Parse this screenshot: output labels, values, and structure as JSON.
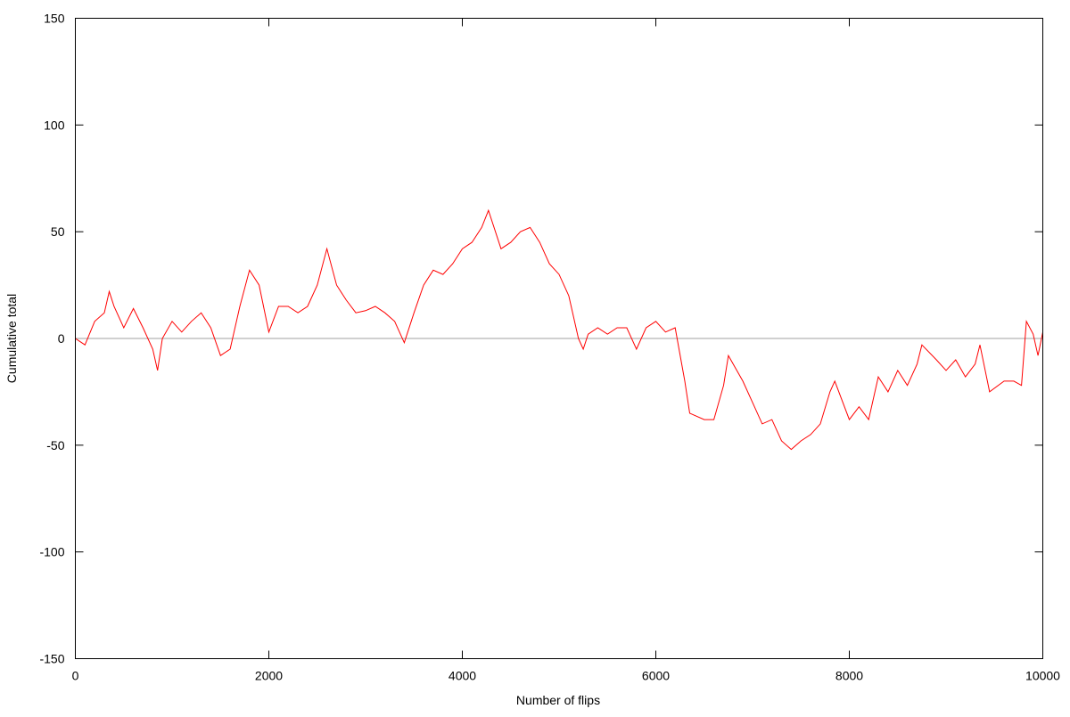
{
  "chart_data": {
    "type": "line",
    "title": "",
    "xlabel": "Number of flips",
    "ylabel": "Cumulative total",
    "xlim": [
      0,
      10000
    ],
    "ylim": [
      -150,
      150
    ],
    "xticks": [
      0,
      2000,
      4000,
      6000,
      8000,
      10000
    ],
    "yticks": [
      -150,
      -100,
      -50,
      0,
      50,
      100,
      150
    ],
    "xtick_labels": [
      "0",
      "2000",
      "4000",
      "6000",
      "8000",
      "10000"
    ],
    "ytick_labels": [
      "-150",
      "-100",
      "-50",
      "0",
      "50",
      "100",
      "150"
    ],
    "grid": false,
    "legend": "none",
    "zero_line": true,
    "colors": {
      "series": "#ff0000",
      "zero_line": "#a0a0a0",
      "axes": "#000000"
    },
    "series": [
      {
        "x": [
          0,
          100,
          200,
          300,
          350,
          400,
          500,
          600,
          700,
          800,
          850,
          900,
          1000,
          1100,
          1200,
          1300,
          1400,
          1500,
          1600,
          1700,
          1800,
          1900,
          2000,
          2100,
          2200,
          2300,
          2400,
          2500,
          2600,
          2700,
          2800,
          2900,
          3000,
          3100,
          3200,
          3300,
          3400,
          3500,
          3600,
          3700,
          3800,
          3900,
          4000,
          4100,
          4200,
          4270,
          4400,
          4500,
          4600,
          4700,
          4800,
          4900,
          5000,
          5100,
          5200,
          5250,
          5300,
          5400,
          5500,
          5600,
          5700,
          5800,
          5900,
          6000,
          6100,
          6200,
          6300,
          6350,
          6500,
          6600,
          6700,
          6750,
          6900,
          7000,
          7100,
          7200,
          7300,
          7400,
          7500,
          7600,
          7700,
          7800,
          7850,
          8000,
          8100,
          8200,
          8300,
          8400,
          8500,
          8600,
          8700,
          8750,
          8900,
          9000,
          9100,
          9200,
          9300,
          9350,
          9450,
          9600,
          9700,
          9780,
          9830,
          9900,
          9950,
          10000
        ],
        "y": [
          0,
          -3,
          8,
          12,
          22,
          15,
          5,
          14,
          5,
          -5,
          -15,
          0,
          8,
          3,
          8,
          12,
          5,
          -8,
          -5,
          15,
          32,
          25,
          3,
          15,
          15,
          12,
          15,
          25,
          42,
          25,
          18,
          12,
          13,
          15,
          12,
          8,
          -2,
          12,
          25,
          32,
          30,
          35,
          42,
          45,
          52,
          60,
          42,
          45,
          50,
          52,
          45,
          35,
          30,
          20,
          0,
          -5,
          2,
          5,
          2,
          5,
          5,
          -5,
          5,
          8,
          3,
          5,
          -20,
          -35,
          -38,
          -38,
          -22,
          -8,
          -20,
          -30,
          -40,
          -38,
          -48,
          -52,
          -48,
          -45,
          -40,
          -25,
          -20,
          -38,
          -32,
          -38,
          -18,
          -25,
          -15,
          -22,
          -12,
          -3,
          -10,
          -15,
          -10,
          -18,
          -12,
          -3,
          -25,
          -20,
          -20,
          -22,
          8,
          2,
          -8,
          3
        ]
      }
    ]
  }
}
